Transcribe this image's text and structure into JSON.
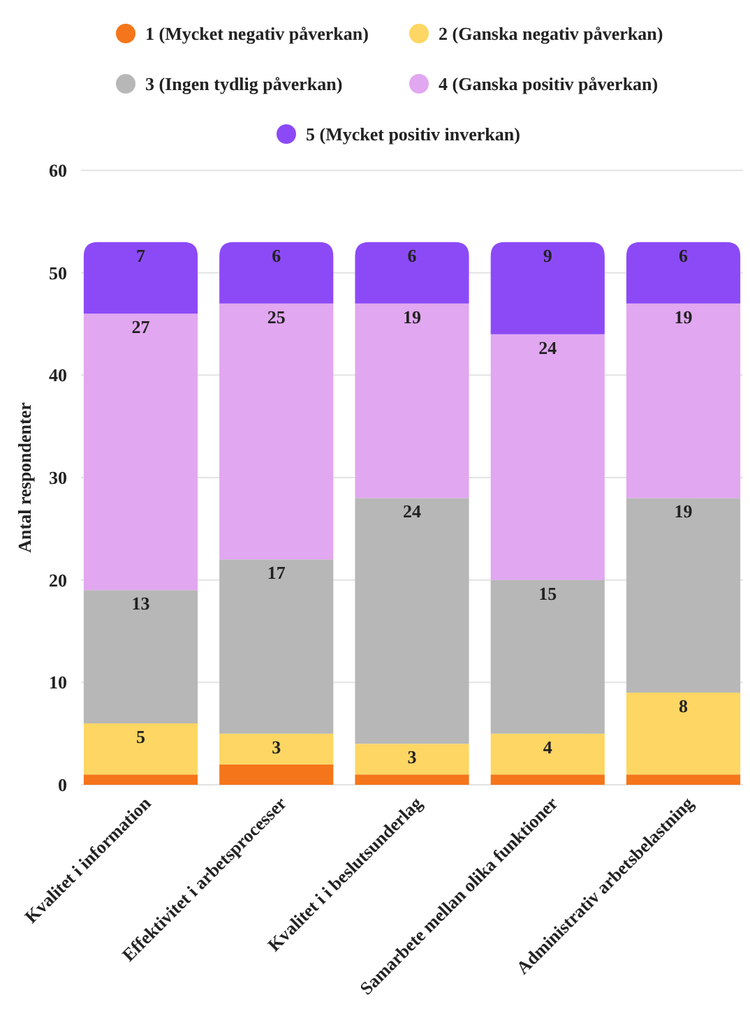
{
  "chart_data": {
    "type": "bar",
    "stacked": true,
    "ylabel": "Antal respondenter",
    "categories": [
      "Kvalitet i information",
      "Effektivitet i arbetsprocesser",
      "Kvalitet i i beslutsunderlag",
      "Samarbete mellan olika funktioner",
      "Administrativ arbetsbelastning"
    ],
    "series": [
      {
        "name": "1 (Mycket negativ påverkan)",
        "color": "#f5761a",
        "values": [
          1,
          2,
          1,
          1,
          1
        ],
        "value_labels": [
          null,
          null,
          null,
          null,
          null
        ]
      },
      {
        "name": "2 (Ganska negativ påverkan)",
        "color": "#fdd663",
        "values": [
          5,
          3,
          3,
          4,
          8
        ],
        "value_labels": [
          "5",
          "3",
          "3",
          "4",
          "8"
        ]
      },
      {
        "name": "3 (Ingen tydlig påverkan)",
        "color": "#b7b7b7",
        "values": [
          13,
          17,
          24,
          15,
          19
        ],
        "value_labels": [
          "13",
          "17",
          "24",
          "15",
          "19"
        ]
      },
      {
        "name": "4 (Ganska positiv påverkan)",
        "color": "#e1a7f0",
        "values": [
          27,
          25,
          19,
          24,
          19
        ],
        "value_labels": [
          "27",
          "25",
          "19",
          "24",
          "19"
        ]
      },
      {
        "name": "5 (Mycket positiv inverkan)",
        "color": "#8c4af7",
        "values": [
          7,
          6,
          6,
          9,
          6
        ],
        "value_labels": [
          "7",
          "6",
          "6",
          "9",
          "6"
        ]
      }
    ],
    "ylim": [
      0,
      60
    ],
    "yticks": [
      0,
      10,
      20,
      30,
      40,
      50,
      60
    ],
    "grid": "y",
    "legend": "top"
  }
}
